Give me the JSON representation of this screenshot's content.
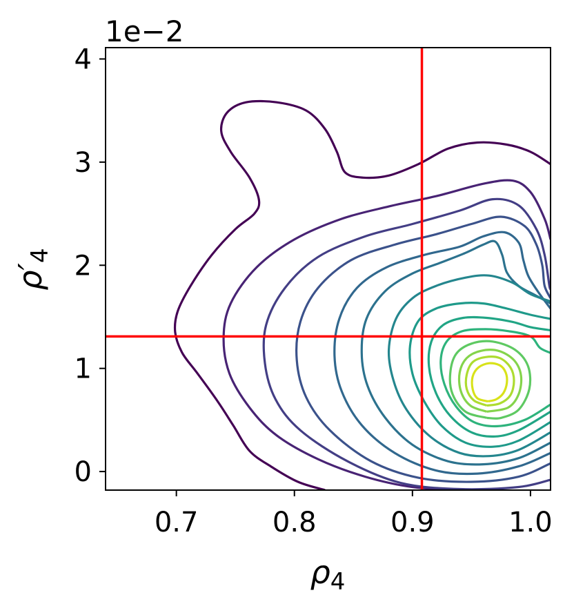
{
  "chart_data": {
    "type": "contour",
    "title": "",
    "offset_text": "1e−2",
    "xlabel": "ρ",
    "xlabel_sub": "4",
    "ylabel": "ρ′",
    "ylabel_sub": "4",
    "xlim": [
      0.64,
      1.017
    ],
    "ylim": [
      -0.0018,
      0.0411
    ],
    "x_ticks": [
      {
        "value": 0.7,
        "label": "0.7"
      },
      {
        "value": 0.8,
        "label": "0.8"
      },
      {
        "value": 0.9,
        "label": "0.9"
      },
      {
        "value": 1.0,
        "label": "1.0"
      }
    ],
    "y_ticks": [
      {
        "value": 0.0,
        "label": "0"
      },
      {
        "value": 0.01,
        "label": "1"
      },
      {
        "value": 0.02,
        "label": "2"
      },
      {
        "value": 0.03,
        "label": "3"
      },
      {
        "value": 0.04,
        "label": "4"
      }
    ],
    "grid": false,
    "colormap": "viridis",
    "density_peak": {
      "x": 0.963,
      "y": 0.0088
    },
    "reference_lines": [
      {
        "orientation": "vertical",
        "value": 0.908,
        "color": "#ff0000"
      },
      {
        "orientation": "horizontal",
        "value": 0.0131,
        "color": "#ff0000"
      }
    ],
    "contour_levels": [
      {
        "color": "#440154",
        "points": [
          [
            0.826,
            -0.0018
          ],
          [
            0.803,
            -0.001
          ],
          [
            0.78,
            0.0005
          ],
          [
            0.762,
            0.002
          ],
          [
            0.748,
            0.0045
          ],
          [
            0.735,
            0.0068
          ],
          [
            0.718,
            0.0095
          ],
          [
            0.705,
            0.0115
          ],
          [
            0.699,
            0.0135
          ],
          [
            0.701,
            0.0155
          ],
          [
            0.712,
            0.018
          ],
          [
            0.73,
            0.021
          ],
          [
            0.75,
            0.0235
          ],
          [
            0.766,
            0.025
          ],
          [
            0.77,
            0.0263
          ],
          [
            0.762,
            0.0285
          ],
          [
            0.746,
            0.031
          ],
          [
            0.738,
            0.033
          ],
          [
            0.743,
            0.0348
          ],
          [
            0.759,
            0.0358
          ],
          [
            0.785,
            0.0358
          ],
          [
            0.81,
            0.035
          ],
          [
            0.826,
            0.0332
          ],
          [
            0.836,
            0.031
          ],
          [
            0.843,
            0.029
          ],
          [
            0.858,
            0.0285
          ],
          [
            0.88,
            0.0287
          ],
          [
            0.905,
            0.0298
          ],
          [
            0.93,
            0.0313
          ],
          [
            0.955,
            0.0319
          ],
          [
            0.98,
            0.0317
          ],
          [
            1.0,
            0.031
          ],
          [
            1.017,
            0.0298
          ]
        ]
      },
      {
        "color": "#482374",
        "points": [
          [
            0.945,
            -0.0018
          ],
          [
            0.9,
            -0.0015
          ],
          [
            0.86,
            -0.0005
          ],
          [
            0.82,
            0.0012
          ],
          [
            0.785,
            0.0035
          ],
          [
            0.762,
            0.0062
          ],
          [
            0.745,
            0.0095
          ],
          [
            0.74,
            0.013
          ],
          [
            0.746,
            0.0163
          ],
          [
            0.768,
            0.0198
          ],
          [
            0.8,
            0.0225
          ],
          [
            0.84,
            0.0245
          ],
          [
            0.88,
            0.0257
          ],
          [
            0.92,
            0.0267
          ],
          [
            0.96,
            0.0279
          ],
          [
            0.985,
            0.0282
          ],
          [
            1.0,
            0.0271
          ],
          [
            1.012,
            0.0245
          ],
          [
            1.017,
            0.0225
          ]
        ]
      },
      {
        "color": "#433e85",
        "points": [
          [
            1.017,
            -0.0008
          ],
          [
            0.99,
            -0.0015
          ],
          [
            0.94,
            -0.0017
          ],
          [
            0.89,
            -0.0011
          ],
          [
            0.845,
            0.001
          ],
          [
            0.805,
            0.004
          ],
          [
            0.784,
            0.007
          ],
          [
            0.775,
            0.0105
          ],
          [
            0.776,
            0.0142
          ],
          [
            0.792,
            0.0178
          ],
          [
            0.82,
            0.0208
          ],
          [
            0.86,
            0.0228
          ],
          [
            0.9,
            0.024
          ],
          [
            0.94,
            0.0253
          ],
          [
            0.968,
            0.0264
          ],
          [
            0.99,
            0.0258
          ],
          [
            1.005,
            0.0235
          ],
          [
            1.012,
            0.021
          ],
          [
            1.016,
            0.018
          ],
          [
            1.017,
            0.0178
          ]
        ]
      },
      {
        "color": "#3b528b",
        "points": [
          [
            1.017,
            0.0008
          ],
          [
            0.99,
            -0.0005
          ],
          [
            0.95,
            -0.001
          ],
          [
            0.905,
            -0.0006
          ],
          [
            0.865,
            0.001
          ],
          [
            0.83,
            0.004
          ],
          [
            0.81,
            0.0072
          ],
          [
            0.802,
            0.0108
          ],
          [
            0.805,
            0.0145
          ],
          [
            0.82,
            0.0178
          ],
          [
            0.848,
            0.0205
          ],
          [
            0.885,
            0.022
          ],
          [
            0.92,
            0.023
          ],
          [
            0.95,
            0.024
          ],
          [
            0.975,
            0.0247
          ],
          [
            0.995,
            0.0238
          ],
          [
            1.005,
            0.022
          ],
          [
            1.01,
            0.02
          ],
          [
            1.012,
            0.018
          ],
          [
            1.017,
            0.0168
          ]
        ]
      },
      {
        "color": "#31688e",
        "points": [
          [
            1.017,
            0.0018
          ],
          [
            0.99,
            0.0005
          ],
          [
            0.955,
            -0.0002
          ],
          [
            0.92,
            0.0001
          ],
          [
            0.885,
            0.0018
          ],
          [
            0.857,
            0.0045
          ],
          [
            0.84,
            0.0078
          ],
          [
            0.834,
            0.0112
          ],
          [
            0.838,
            0.0148
          ],
          [
            0.853,
            0.0178
          ],
          [
            0.878,
            0.0198
          ],
          [
            0.91,
            0.021
          ],
          [
            0.94,
            0.0218
          ],
          [
            0.96,
            0.0228
          ],
          [
            0.978,
            0.0232
          ],
          [
            0.99,
            0.0222
          ],
          [
            0.994,
            0.0205
          ],
          [
            0.998,
            0.019
          ],
          [
            1.006,
            0.0175
          ],
          [
            1.017,
            0.0158
          ]
        ]
      },
      {
        "color": "#2c728e",
        "points": [
          [
            1.017,
            0.0028
          ],
          [
            0.99,
            0.0013
          ],
          [
            0.96,
            0.0007
          ],
          [
            0.93,
            0.001
          ],
          [
            0.9,
            0.0026
          ],
          [
            0.877,
            0.0052
          ],
          [
            0.862,
            0.0083
          ],
          [
            0.857,
            0.0115
          ],
          [
            0.861,
            0.0148
          ],
          [
            0.877,
            0.0175
          ],
          [
            0.9,
            0.0192
          ],
          [
            0.925,
            0.0203
          ],
          [
            0.945,
            0.0212
          ],
          [
            0.96,
            0.022
          ],
          [
            0.97,
            0.0223
          ],
          [
            0.976,
            0.021
          ],
          [
            0.98,
            0.0193
          ],
          [
            0.99,
            0.018
          ],
          [
            1.004,
            0.0171
          ],
          [
            1.017,
            0.0163
          ]
        ]
      },
      {
        "color": "#24868e",
        "points": [
          [
            1.017,
            0.0038
          ],
          [
            0.99,
            0.0021
          ],
          [
            0.965,
            0.0015
          ],
          [
            0.94,
            0.0018
          ],
          [
            0.915,
            0.0034
          ],
          [
            0.895,
            0.006
          ],
          [
            0.884,
            0.0088
          ],
          [
            0.88,
            0.0118
          ],
          [
            0.886,
            0.0148
          ],
          [
            0.9,
            0.0168
          ],
          [
            0.92,
            0.018
          ],
          [
            0.945,
            0.0188
          ],
          [
            0.965,
            0.019
          ],
          [
            0.985,
            0.0183
          ],
          [
            1.0,
            0.0172
          ],
          [
            1.017,
            0.0165
          ]
        ]
      },
      {
        "color": "#1f9a8a",
        "points": [
          [
            1.017,
            0.0048
          ],
          [
            0.99,
            0.003
          ],
          [
            0.968,
            0.0024
          ],
          [
            0.945,
            0.0028
          ],
          [
            0.925,
            0.0044
          ],
          [
            0.91,
            0.0068
          ],
          [
            0.9,
            0.0095
          ],
          [
            0.898,
            0.0122
          ],
          [
            0.905,
            0.0146
          ],
          [
            0.92,
            0.0158
          ],
          [
            0.94,
            0.0163
          ],
          [
            0.96,
            0.0163
          ],
          [
            0.98,
            0.0158
          ],
          [
            1.0,
            0.0152
          ],
          [
            1.017,
            0.0148
          ]
        ]
      },
      {
        "color": "#21a585",
        "points": [
          [
            1.017,
            0.0058
          ],
          [
            0.99,
            0.004
          ],
          [
            0.97,
            0.0034
          ],
          [
            0.95,
            0.0038
          ],
          [
            0.932,
            0.0054
          ],
          [
            0.92,
            0.0076
          ],
          [
            0.914,
            0.0102
          ],
          [
            0.916,
            0.0126
          ],
          [
            0.926,
            0.0142
          ],
          [
            0.943,
            0.0149
          ],
          [
            0.963,
            0.0149
          ],
          [
            0.985,
            0.0145
          ],
          [
            1.0,
            0.014
          ],
          [
            1.017,
            0.0137
          ]
        ]
      },
      {
        "color": "#2eb37c",
        "points": [
          [
            1.017,
            0.0065
          ],
          [
            0.995,
            0.005
          ],
          [
            0.972,
            0.0044
          ],
          [
            0.952,
            0.0048
          ],
          [
            0.937,
            0.0063
          ],
          [
            0.927,
            0.0085
          ],
          [
            0.924,
            0.0108
          ],
          [
            0.929,
            0.0126
          ],
          [
            0.942,
            0.0136
          ],
          [
            0.962,
            0.0138
          ],
          [
            0.982,
            0.0136
          ],
          [
            1.0,
            0.0131
          ],
          [
            1.008,
            0.012
          ],
          [
            1.017,
            0.0115
          ]
        ]
      },
      {
        "color": "#5ec962",
        "points": [
          [
            0.963,
            0.0052
          ],
          [
            0.945,
            0.0058
          ],
          [
            0.934,
            0.0075
          ],
          [
            0.932,
            0.0095
          ],
          [
            0.937,
            0.0114
          ],
          [
            0.95,
            0.0124
          ],
          [
            0.968,
            0.0126
          ],
          [
            0.987,
            0.0118
          ],
          [
            0.998,
            0.0102
          ],
          [
            0.999,
            0.008
          ],
          [
            0.99,
            0.006
          ],
          [
            0.975,
            0.0052
          ],
          [
            0.963,
            0.0052
          ]
        ]
      },
      {
        "color": "#84d44b",
        "points": [
          [
            0.963,
            0.0058
          ],
          [
            0.949,
            0.0064
          ],
          [
            0.941,
            0.0078
          ],
          [
            0.94,
            0.0096
          ],
          [
            0.946,
            0.011
          ],
          [
            0.958,
            0.0117
          ],
          [
            0.973,
            0.0117
          ],
          [
            0.986,
            0.0108
          ],
          [
            0.992,
            0.0093
          ],
          [
            0.99,
            0.0075
          ],
          [
            0.981,
            0.0062
          ],
          [
            0.963,
            0.0058
          ]
        ]
      },
      {
        "color": "#addc30",
        "points": [
          [
            0.963,
            0.0064
          ],
          [
            0.952,
            0.0069
          ],
          [
            0.946,
            0.008
          ],
          [
            0.946,
            0.0094
          ],
          [
            0.951,
            0.0106
          ],
          [
            0.962,
            0.0111
          ],
          [
            0.974,
            0.011
          ],
          [
            0.983,
            0.0101
          ],
          [
            0.986,
            0.0088
          ],
          [
            0.983,
            0.0074
          ],
          [
            0.974,
            0.0066
          ],
          [
            0.963,
            0.0064
          ]
        ]
      },
      {
        "color": "#d8e219",
        "points": [
          [
            0.964,
            0.0068
          ],
          [
            0.955,
            0.0071
          ],
          [
            0.951,
            0.008
          ],
          [
            0.951,
            0.0092
          ],
          [
            0.956,
            0.0101
          ],
          [
            0.965,
            0.0105
          ],
          [
            0.974,
            0.0103
          ],
          [
            0.979,
            0.0096
          ],
          [
            0.98,
            0.0086
          ],
          [
            0.977,
            0.0076
          ],
          [
            0.971,
            0.007
          ],
          [
            0.964,
            0.0068
          ]
        ]
      }
    ]
  }
}
